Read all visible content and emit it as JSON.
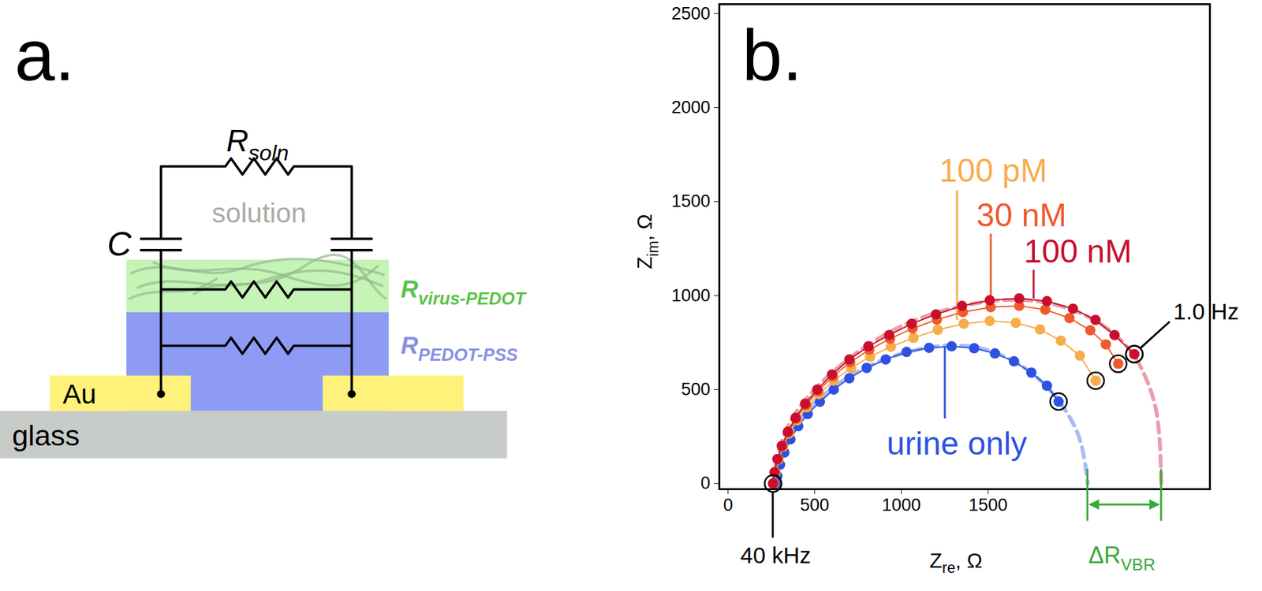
{
  "diagram": {
    "panel_label": "a.",
    "solution_resistor": {
      "text": "Rsoln",
      "subscript": "soln"
    },
    "capacitor": "C",
    "solution": "solution",
    "virus_layer": {
      "text": "Rvirus-PEDOT",
      "subscript": "virus-PEDOT",
      "color": "#5ac34a"
    },
    "pedot_layer": {
      "text": "RPEDOT-PSS",
      "subscript": "PEDOT-PSS",
      "color": "#8790e3"
    },
    "electrode": "Au",
    "substrate": "glass"
  },
  "chart_data": {
    "type": "scatter",
    "title": "b.",
    "xlabel": {
      "text": "Zre, Ω",
      "subscript": "re"
    },
    "ylabel": {
      "text": "Zim, Ω",
      "subscript": "im"
    },
    "xlim": [
      -50,
      2780
    ],
    "ylim": [
      -30,
      2550
    ],
    "xticks": [
      0,
      500,
      1000,
      1500
    ],
    "yticks": [
      0,
      500,
      1000,
      1500,
      2000,
      2500
    ],
    "grid": false,
    "marker": "circle",
    "line_style": "solid",
    "series": [
      {
        "name": "urine only",
        "color": "#2d52e0",
        "x": [
          280,
          285,
          300,
          325,
          360,
          405,
          460,
          530,
          610,
          700,
          800,
          910,
          1030,
          1160,
          1290,
          1420,
          1540,
          1650,
          1750,
          1840,
          1907
        ],
        "values": [
          0,
          40,
          100,
          165,
          235,
          305,
          370,
          435,
          500,
          560,
          615,
          660,
          700,
          722,
          730,
          720,
          692,
          650,
          590,
          520,
          436
        ],
        "label": {
          "x": 1321,
          "y": 209,
          "pointer_x": 1251,
          "pointer_y1": 346,
          "pointer_y2": 725
        },
        "fit": {
          "line_style": "dashed",
          "x": [
            280,
            330,
            470,
            720,
            1000,
            1290,
            1560,
            1800,
            1960,
            2040,
            2075
          ],
          "values": [
            0,
            200,
            400,
            580,
            690,
            735,
            690,
            550,
            370,
            200,
            0
          ]
        }
      },
      {
        "name": "100 pM",
        "color": "#f8ac4c",
        "x": [
          265,
          275,
          292,
          318,
          353,
          398,
          455,
          525,
          610,
          710,
          820,
          940,
          1070,
          1210,
          1360,
          1510,
          1660,
          1800,
          1920,
          2030,
          2121
        ],
        "values": [
          0,
          60,
          128,
          196,
          266,
          336,
          406,
          476,
          548,
          615,
          675,
          728,
          775,
          818,
          850,
          865,
          855,
          820,
          760,
          680,
          547
        ],
        "label": {
          "x": 1530,
          "y": 1660,
          "pointer_x": 1321,
          "pointer_y1": 1560,
          "pointer_y2": 870
        }
      },
      {
        "name": "30 nM",
        "color": "#ef5a2c",
        "x": [
          260,
          270,
          287,
          313,
          348,
          393,
          450,
          520,
          605,
          705,
          815,
          935,
          1065,
          1205,
          1355,
          1515,
          1680,
          1830,
          1970,
          2090,
          2180,
          2251
        ],
        "values": [
          0,
          60,
          130,
          200,
          272,
          345,
          418,
          492,
          570,
          645,
          712,
          770,
          825,
          872,
          912,
          938,
          945,
          925,
          880,
          815,
          740,
          637
        ],
        "label": {
          "x": 1693,
          "y": 1423,
          "pointer_x": 1516,
          "pointer_y1": 1329,
          "pointer_y2": 945
        }
      },
      {
        "name": "100 nM",
        "color": "#c8102e",
        "x": [
          260,
          268,
          285,
          310,
          345,
          390,
          445,
          515,
          600,
          700,
          810,
          930,
          1060,
          1200,
          1350,
          1510,
          1680,
          1840,
          1990,
          2120,
          2230,
          2344
        ],
        "values": [
          0,
          60,
          130,
          200,
          275,
          350,
          425,
          500,
          580,
          660,
          730,
          790,
          850,
          900,
          945,
          975,
          985,
          970,
          930,
          870,
          790,
          688
        ],
        "label": {
          "x": 2018,
          "y": 1231,
          "pointer_x": 1763,
          "pointer_y1": 1137,
          "pointer_y2": 985
        },
        "fit": {
          "line_style": "dashed",
          "x": [
            260,
            320,
            470,
            720,
            1030,
            1380,
            1720,
            2050,
            2300,
            2420,
            2480,
            2500
          ],
          "values": [
            0,
            250,
            470,
            680,
            850,
            950,
            975,
            900,
            730,
            540,
            330,
            0
          ]
        }
      }
    ],
    "annotations": [
      {
        "text": "40 kHz",
        "x": 260,
        "y": 0,
        "pointer_y": -290,
        "label_x": 275,
        "label_y": -385
      },
      {
        "text": "1.0 Hz",
        "x": 2344,
        "y": 688,
        "pointer_x": 2550,
        "pointer_y": 860,
        "label_x": 2569,
        "label_y": 913
      },
      {
        "text": "ΔRVBR",
        "subscript": "VBR",
        "color": "#37a935",
        "x1": 2075,
        "x2": 2500,
        "y1": 77,
        "y2": -200,
        "arrow_y": -113,
        "label_x": 2274,
        "label_y": -385
      }
    ]
  }
}
